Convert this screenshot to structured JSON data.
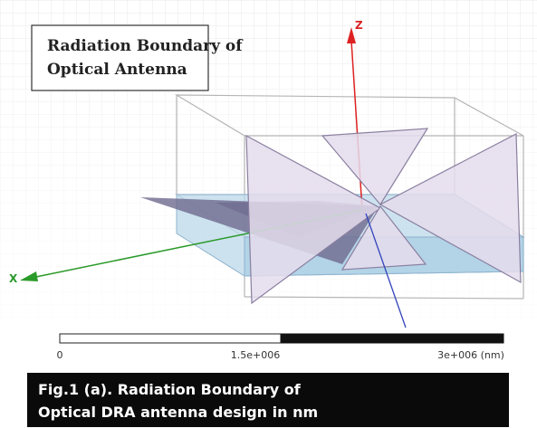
{
  "label_box": {
    "lines": [
      "Radiation Boundary of",
      "Optical Antenna"
    ]
  },
  "axes": {
    "z": "Z",
    "x": "X"
  },
  "scale_bar": {
    "labels": [
      "0",
      "1.5e+006",
      "3e+006 (nm)"
    ]
  },
  "caption": {
    "lines": [
      "Fig.1 (a). Radiation Boundary of",
      "Optical  DRA antenna design in nm"
    ]
  }
}
